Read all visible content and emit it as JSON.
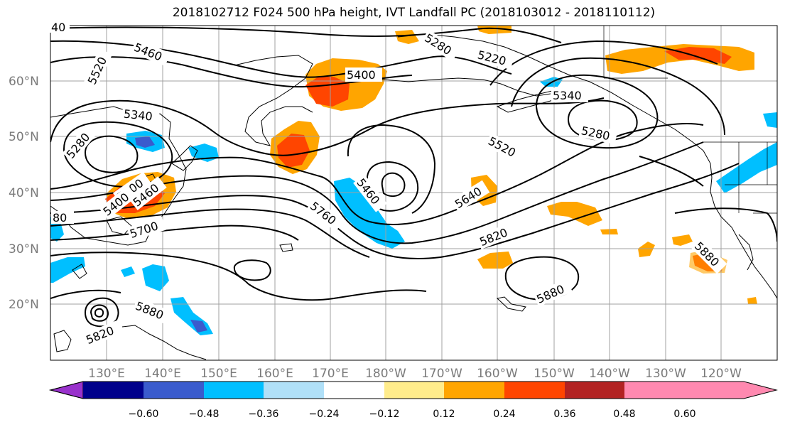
{
  "title": "2018102712 F024 500 hPa height, IVT Landfall PC (2018103012 - 2018110112)",
  "lat_labels": [
    "60°N",
    "50°N",
    "40°N",
    "30°N",
    "20°N"
  ],
  "lon_labels": [
    "130°E",
    "140°E",
    "150°E",
    "160°E",
    "170°E",
    "180°W",
    "170°W",
    "160°W",
    "150°W",
    "140°W",
    "130°W",
    "120°W"
  ],
  "contour_labels": [
    "40",
    "5460",
    "5520",
    "5280",
    "5340",
    "5400",
    "5280",
    "5220",
    "5400",
    "5340",
    "5280",
    "5520",
    "5460",
    "5640",
    "5400",
    "5460",
    "80",
    "5700",
    "5760",
    "5820",
    "5880",
    "5880",
    "5880",
    "5820"
  ],
  "colorbar": {
    "ticks": [
      "−0.60",
      "−0.48",
      "−0.36",
      "−0.24",
      "−0.12",
      "0.12",
      "0.24",
      "0.36",
      "0.48",
      "0.60"
    ],
    "colors": [
      "#9932cc",
      "#00008b",
      "#3a5bcd",
      "#00bfff",
      "#b0e0f8",
      "#ffffff",
      "#ffec8b",
      "#ffa500",
      "#ff4500",
      "#b22222",
      "#ff89b0"
    ]
  },
  "colors": {
    "contour": "#000000",
    "grid": "#a0a0a0",
    "coast": "#000000"
  }
}
